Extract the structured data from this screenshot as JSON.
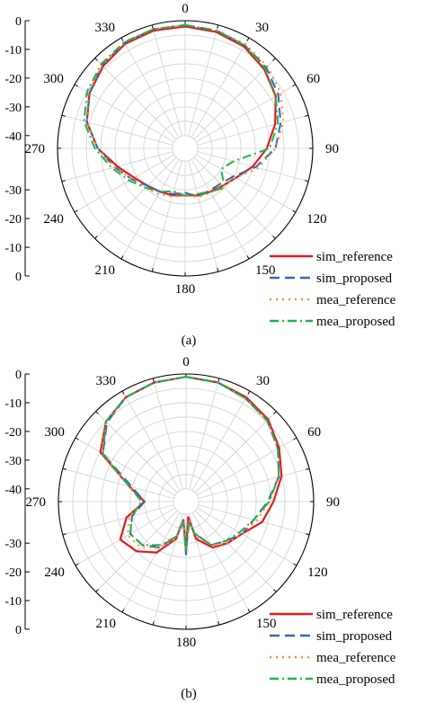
{
  "figure": {
    "panels": [
      {
        "caption": "(a)"
      },
      {
        "caption": "(b)"
      }
    ]
  },
  "chart_data": [
    {
      "type": "polar",
      "caption": "(a)",
      "angular_ticks": [
        "0",
        "30",
        "60",
        "90",
        "120",
        "150",
        "180",
        "210",
        "240",
        "270",
        "300",
        "330"
      ],
      "radial_ticks_top": [
        "0",
        "-10",
        "-20",
        "-30",
        "-40"
      ],
      "radial_ticks_bottom": [
        "-30",
        "-20",
        "-10",
        "0"
      ],
      "rlim": [
        -40,
        0
      ],
      "grid": true,
      "legend_position": "bottom-right",
      "angles": [
        0,
        15,
        30,
        45,
        60,
        75,
        90,
        105,
        120,
        135,
        150,
        165,
        180,
        195,
        210,
        225,
        240,
        255,
        270,
        285,
        300,
        315,
        330,
        345
      ],
      "series": [
        {
          "name": "sim_reference",
          "color": "#e41a1c",
          "dash": "solid",
          "values": [
            -2,
            -2.5,
            -3.5,
            -5.5,
            -8,
            -12,
            -16,
            -20,
            -24,
            -26,
            -27,
            -27.5,
            -28,
            -27.5,
            -27,
            -26,
            -24,
            -20,
            -14,
            -9,
            -6,
            -4,
            -2.5,
            -2
          ]
        },
        {
          "name": "sim_proposed",
          "color": "#2b6cb0",
          "dash": "dash",
          "values": [
            -1.5,
            -2,
            -3,
            -4.5,
            -7,
            -10,
            -13,
            -19,
            -25,
            -27,
            -27.5,
            -27,
            -29,
            -28,
            -27,
            -26,
            -23,
            -19,
            -14,
            -9,
            -6,
            -3.5,
            -2,
            -1.5
          ]
        },
        {
          "name": "mea_reference",
          "color": "#ff8c1a",
          "dash": "dot",
          "values": [
            -1.5,
            -2,
            -2.5,
            -4,
            -6,
            -9,
            -13,
            -18,
            -24,
            -26,
            -26.5,
            -27,
            -28,
            -27,
            -26,
            -25,
            -23,
            -19,
            -14,
            -9,
            -5.5,
            -3.5,
            -2,
            -1.5
          ]
        },
        {
          "name": "mea_proposed",
          "color": "#1fb34a",
          "dash": "dashdot",
          "values": [
            -1.5,
            -2,
            -3,
            -5,
            -8,
            -11,
            -15,
            -27,
            -30,
            -25,
            -27,
            -28,
            -28,
            -29,
            -27,
            -25,
            -22,
            -18,
            -13,
            -8,
            -5,
            -3,
            -1.8,
            -1.5
          ]
        }
      ]
    },
    {
      "type": "polar",
      "caption": "(b)",
      "angular_ticks": [
        "0",
        "30",
        "60",
        "90",
        "120",
        "150",
        "180",
        "210",
        "240",
        "270",
        "300",
        "330"
      ],
      "radial_ticks_top": [
        "0",
        "-10",
        "-20",
        "-30",
        "-40"
      ],
      "radial_ticks_bottom": [
        "-30",
        "-20",
        "-10",
        "0"
      ],
      "rlim": [
        -40,
        0
      ],
      "grid": true,
      "legend_position": "bottom-right",
      "angles": [
        0,
        15,
        30,
        45,
        60,
        75,
        90,
        105,
        120,
        135,
        150,
        165,
        172,
        180,
        188,
        195,
        210,
        225,
        240,
        255,
        270,
        285,
        300,
        315,
        330,
        345
      ],
      "series": [
        {
          "name": "sim_reference",
          "color": "#e41a1c",
          "dash": "solid",
          "values": [
            -1,
            -1.5,
            -2.5,
            -4,
            -7,
            -10,
            -14,
            -17,
            -22,
            -24,
            -26,
            -31,
            -39,
            -27,
            -38,
            -31,
            -24,
            -20,
            -18,
            -23,
            -30,
            -24,
            -10,
            -5,
            -2.5,
            -1.5
          ]
        },
        {
          "name": "sim_proposed",
          "color": "#2b6cb0",
          "dash": "dash",
          "values": [
            -1,
            -1.5,
            -3,
            -4.5,
            -7.5,
            -11,
            -16,
            -20,
            -22,
            -25,
            -27,
            -33,
            -38,
            -26,
            -38,
            -32,
            -26,
            -23,
            -22,
            -25,
            -30,
            -25,
            -11,
            -5.5,
            -2.5,
            -1.5
          ]
        },
        {
          "name": "mea_reference",
          "color": "#ff8c1a",
          "dash": "dot",
          "values": [
            -1,
            -1.5,
            -3,
            -4.5,
            -7.5,
            -11,
            -15.5,
            -19,
            -22,
            -24,
            -27,
            -32,
            -38,
            -27,
            -38,
            -31,
            -26,
            -22,
            -21,
            -24,
            -29,
            -24,
            -10.5,
            -5,
            -2.5,
            -1.5
          ]
        },
        {
          "name": "mea_proposed",
          "color": "#1fb34a",
          "dash": "dashdot",
          "values": [
            -1,
            -1.5,
            -3,
            -4.5,
            -7.5,
            -11,
            -15.5,
            -20,
            -23,
            -25,
            -27,
            -33,
            -37,
            -27,
            -37,
            -32,
            -27,
            -23,
            -22,
            -25,
            -29,
            -24,
            -11,
            -5,
            -2.5,
            -1.5
          ]
        }
      ]
    }
  ]
}
